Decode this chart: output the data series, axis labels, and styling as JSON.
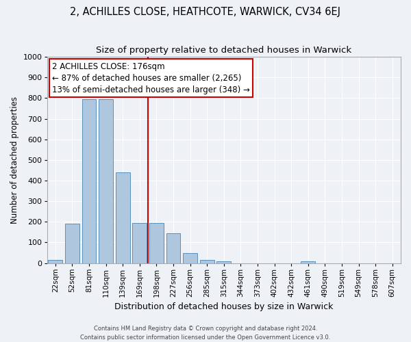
{
  "title": "2, ACHILLES CLOSE, HEATHCOTE, WARWICK, CV34 6EJ",
  "subtitle": "Size of property relative to detached houses in Warwick",
  "xlabel": "Distribution of detached houses by size in Warwick",
  "ylabel": "Number of detached properties",
  "categories": [
    "22sqm",
    "52sqm",
    "81sqm",
    "110sqm",
    "139sqm",
    "169sqm",
    "198sqm",
    "227sqm",
    "256sqm",
    "285sqm",
    "315sqm",
    "344sqm",
    "373sqm",
    "402sqm",
    "432sqm",
    "461sqm",
    "490sqm",
    "519sqm",
    "549sqm",
    "578sqm",
    "607sqm"
  ],
  "values": [
    15,
    190,
    795,
    793,
    440,
    195,
    193,
    145,
    50,
    15,
    10,
    0,
    0,
    0,
    0,
    10,
    0,
    0,
    0,
    0,
    0
  ],
  "bar_color": "#aec6de",
  "bar_edge_color": "#5a90bb",
  "vline_x": 5.5,
  "vline_color": "#cc0000",
  "annotation_text": "2 ACHILLES CLOSE: 176sqm\n← 87% of detached houses are smaller (2,265)\n13% of semi-detached houses are larger (348) →",
  "annotation_box_color": "#ffffff",
  "annotation_box_edge_color": "#cc0000",
  "ylim": [
    0,
    1000
  ],
  "yticks": [
    0,
    100,
    200,
    300,
    400,
    500,
    600,
    700,
    800,
    900,
    1000
  ],
  "footer_text": "Contains HM Land Registry data © Crown copyright and database right 2024.\nContains public sector information licensed under the Open Government Licence v3.0.",
  "bg_color": "#eef2f7",
  "grid_color": "#ffffff",
  "title_fontsize": 10.5,
  "subtitle_fontsize": 9.5,
  "ann_fontsize": 8.5,
  "tick_fontsize": 7.5,
  "ylabel_fontsize": 8.5,
  "xlabel_fontsize": 9
}
